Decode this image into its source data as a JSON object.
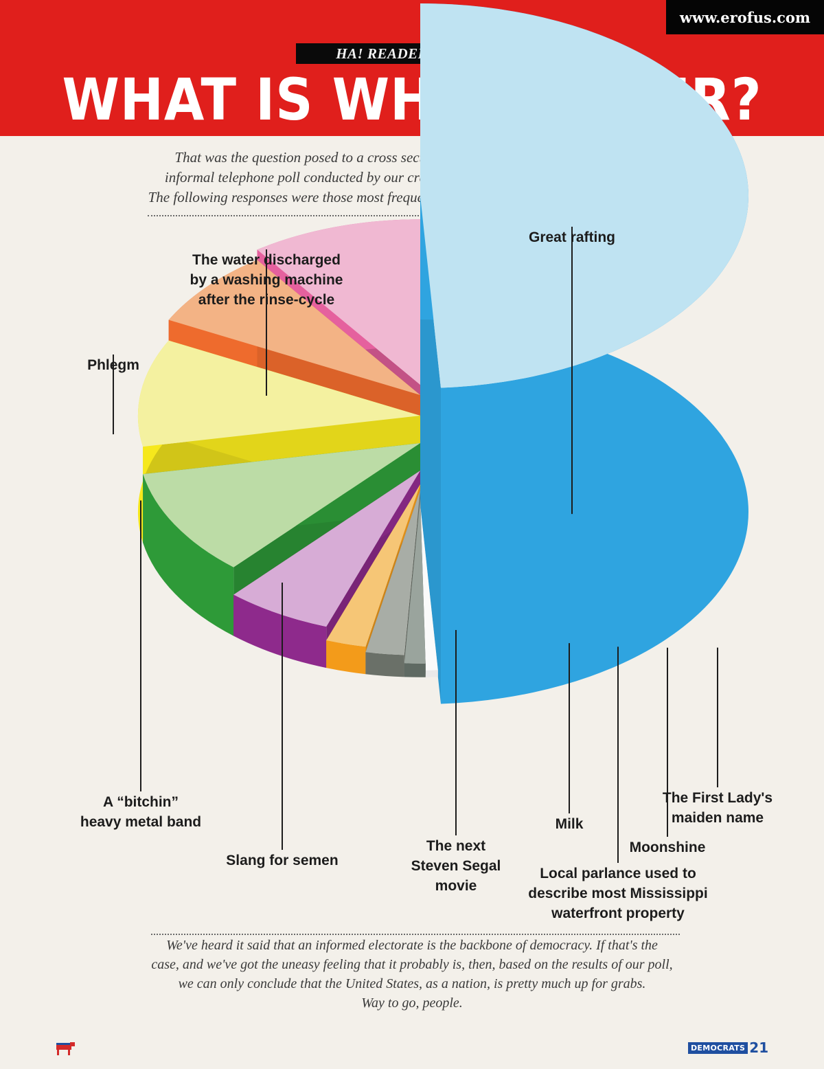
{
  "watermark": "www.erofus.com",
  "header": {
    "banner": "HA! READERS POLL",
    "title": "WHAT IS WHITEWATER?"
  },
  "intro_lines": [
    "That was the question posed to a cross section of the American voting public in an",
    "informal telephone poll conducted by our crack research staff here at General Media.",
    "The following responses were those most frequently given by those participating in the poll."
  ],
  "outro_lines": [
    "We've heard it said that an informed electorate is the backbone of democracy. If that's the",
    "case, and we've got the uneasy feeling that it probably is, then, based on the results of our poll,",
    "we can only conclude that the United States, as a nation, is pretty much up for grabs.",
    "Way to go, people."
  ],
  "footer": {
    "section": "DEMOCRATS",
    "page": "21"
  },
  "chart_data": {
    "type": "pie",
    "style": "3d-exploded-stepped",
    "title": "WHAT IS WHITEWATER?",
    "slices": [
      {
        "label": "Great rafting",
        "value": 49,
        "color": "#2fa4e0",
        "top_color": "#bfe3f2",
        "lines": [
          "Great rafting"
        ]
      },
      {
        "label": "The First Lady's maiden name",
        "value": 0.7,
        "color": "#e9e9e9",
        "top_color": "#fafafa",
        "lines": [
          "The First Lady's",
          "maiden name"
        ]
      },
      {
        "label": "Moonshine",
        "value": 1.2,
        "color": "#5f6a63",
        "top_color": "#9aa49d",
        "lines": [
          "Moonshine"
        ]
      },
      {
        "label": "Local parlance used to describe most Mississippi waterfront property",
        "value": 2.2,
        "color": "#6a7068",
        "top_color": "#a8ada6",
        "lines": [
          "Local parlance used to",
          "describe most Mississippi",
          "waterfront property"
        ]
      },
      {
        "label": "Milk",
        "value": 2.3,
        "color": "#f39b1a",
        "top_color": "#f6c676",
        "lines": [
          "Milk"
        ]
      },
      {
        "label": "The next Steven Segal movie",
        "value": 6.1,
        "color": "#8e2a8c",
        "top_color": "#d7acd6",
        "lines": [
          "The next",
          "Steven Segal",
          "movie"
        ]
      },
      {
        "label": "Slang for semen",
        "value": 10.5,
        "color": "#2e9a38",
        "top_color": "#bcdca6",
        "lines": [
          "Slang for semen"
        ]
      },
      {
        "label": "A \"bitchin\" heavy metal band",
        "value": 10.5,
        "color": "#f6e81c",
        "top_color": "#f4f1a0",
        "lines": [
          "A “bitchin”",
          "heavy metal band"
        ]
      },
      {
        "label": "Phlegm",
        "value": 7.7,
        "color": "#ee6b2d",
        "top_color": "#f3b385",
        "lines": [
          "Phlegm"
        ]
      },
      {
        "label": "The water discharged by a washing machine after the rinse-cycle",
        "value": 9.8,
        "color": "#e5619e",
        "top_color": "#f0b8d2",
        "lines": [
          "The water discharged",
          "by a washing machine",
          "after the rinse-cycle"
        ]
      }
    ]
  }
}
